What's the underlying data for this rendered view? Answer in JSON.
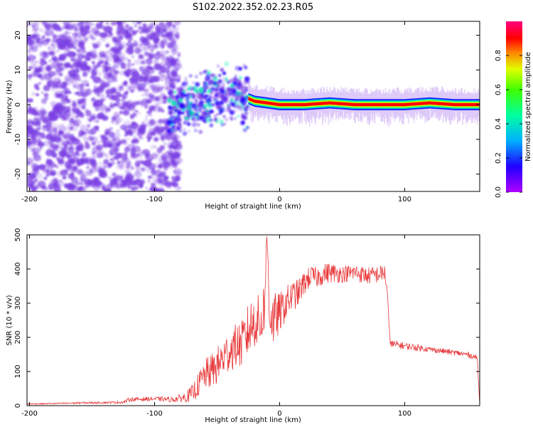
{
  "title": "S102.2022.352.02.23.R05",
  "colors": {
    "spectrogram_noise": "#7b3fe4",
    "ridge_core": "#e8303a",
    "snr_line": "#e8383a",
    "axis": "#000000"
  },
  "colorbar": {
    "label": "Normalized spectral amplitude",
    "ticks": [
      "0.0",
      "0.2",
      "0.4",
      "0.6",
      "0.8"
    ],
    "colormap": "hsv (purple -> blue -> cyan -> green -> yellow -> red -> magenta)"
  },
  "chart_data": [
    {
      "type": "heatmap",
      "title": "S102.2022.352.02.23.R05",
      "xlabel": "Height of straight line (km)",
      "ylabel": "Frequency (Hz)",
      "xlim": [
        -202,
        160
      ],
      "ylim": [
        -25,
        24
      ],
      "xticks": [
        -200,
        -100,
        0,
        100
      ],
      "yticks": [
        -20,
        -10,
        0,
        10,
        20
      ],
      "xtick_labels": [
        "-200",
        "-100",
        "0",
        "100"
      ],
      "ytick_labels": [
        "-20",
        "-10",
        "0",
        "10",
        "20"
      ],
      "grid": false,
      "regions": [
        {
          "x_range": [
            -202,
            -80
          ],
          "pattern": "broadband noise",
          "amplitude_range": [
            0.0,
            0.3
          ]
        },
        {
          "x_range": [
            -88,
            -25
          ],
          "pattern": "emerging ridge near 0-5 Hz",
          "amplitude_range": [
            0.1,
            0.5
          ]
        },
        {
          "x_range": [
            -25,
            160
          ],
          "pattern": "narrow ridge at ~0 Hz",
          "amplitude_range": [
            0.5,
            1.0
          ]
        }
      ],
      "ridge": {
        "x": [
          -85,
          -70,
          -60,
          -50,
          -40,
          -30,
          -20,
          -10,
          0,
          20,
          40,
          60,
          80,
          100,
          120,
          140,
          160
        ],
        "y": [
          0.0,
          0.0,
          1.0,
          2.5,
          3.5,
          2.5,
          1.0,
          0.5,
          0.0,
          0.0,
          0.5,
          0.0,
          0.0,
          0.0,
          0.5,
          0.0,
          0.0
        ]
      }
    },
    {
      "type": "line",
      "xlabel": "Height of straight line (km)",
      "ylabel": "SNR (10 * v/v)",
      "xlim": [
        -202,
        160
      ],
      "ylim": [
        0,
        500
      ],
      "xticks": [
        -200,
        -100,
        0,
        100
      ],
      "yticks": [
        0,
        100,
        200,
        300,
        400,
        500
      ],
      "xtick_labels": [
        "-200",
        "-100",
        "0",
        "100"
      ],
      "ytick_labels": [
        "0",
        "100",
        "200",
        "300",
        "400",
        "500"
      ],
      "grid": false,
      "series": [
        {
          "x": [
            -202,
            -180,
            -160,
            -140,
            -125,
            -120,
            -100,
            -85,
            -75,
            -70,
            -65,
            -60,
            -55,
            -50,
            -45,
            -40,
            -35,
            -30,
            -25,
            -20,
            -15,
            -12,
            -10,
            -8,
            -5,
            0,
            5,
            10,
            15,
            20,
            25,
            30,
            35,
            40,
            50,
            60,
            70,
            80,
            84,
            86,
            88,
            90,
            100,
            110,
            120,
            130,
            140,
            150,
            158,
            160
          ],
          "values": [
            5,
            6,
            8,
            9,
            10,
            18,
            20,
            18,
            25,
            35,
            60,
            90,
            100,
            115,
            140,
            160,
            175,
            180,
            220,
            250,
            240,
            300,
            500,
            270,
            250,
            270,
            300,
            320,
            330,
            360,
            380,
            375,
            385,
            390,
            385,
            390,
            380,
            385,
            390,
            340,
            195,
            180,
            175,
            170,
            165,
            160,
            155,
            150,
            140,
            5
          ],
          "noise_amplitude": [
            2,
            2,
            3,
            3,
            4,
            6,
            6,
            8,
            15,
            25,
            35,
            45,
            50,
            55,
            60,
            60,
            65,
            70,
            80,
            80,
            80,
            80,
            40,
            80,
            80,
            60,
            50,
            45,
            40,
            35,
            30,
            30,
            30,
            30,
            25,
            25,
            25,
            25,
            25,
            20,
            15,
            12,
            10,
            10,
            8,
            8,
            8,
            8,
            8,
            0
          ]
        }
      ]
    }
  ]
}
